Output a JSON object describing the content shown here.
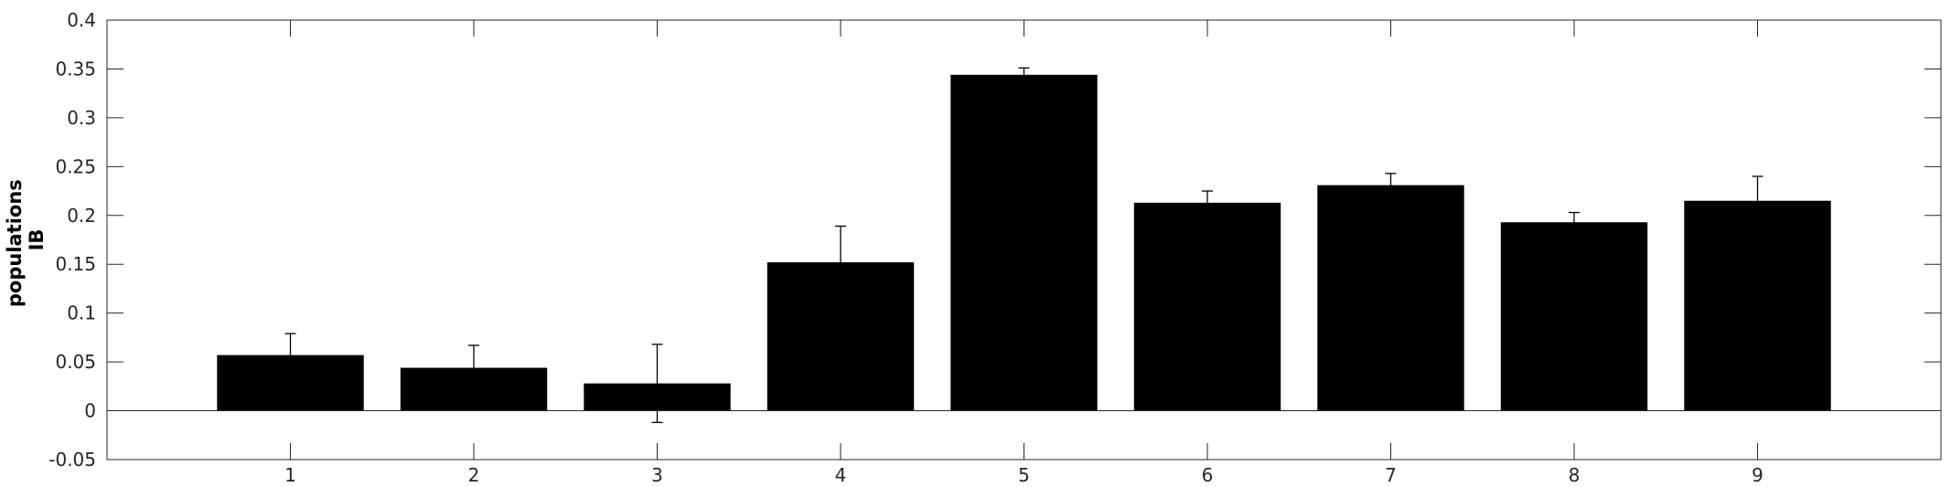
{
  "chart_data": {
    "type": "bar",
    "title": "",
    "xlabel": "",
    "ylabel_lines": [
      "populations",
      "IB"
    ],
    "categories": [
      "1",
      "2",
      "3",
      "4",
      "5",
      "6",
      "7",
      "8",
      "9"
    ],
    "values": [
      0.057,
      0.044,
      0.028,
      0.152,
      0.344,
      0.213,
      0.231,
      0.193,
      0.215
    ],
    "errors": [
      0.022,
      0.023,
      0.04,
      0.037,
      0.007,
      0.012,
      0.012,
      0.01,
      0.025
    ],
    "ylim": [
      -0.05,
      0.4
    ],
    "yticks": [
      -0.05,
      0,
      0.05,
      0.1,
      0.15,
      0.2,
      0.25,
      0.3,
      0.35,
      0.4
    ],
    "ytick_labels": [
      "-0.05",
      "0",
      "0.05",
      "0.1",
      "0.15",
      "0.2",
      "0.25",
      "0.3",
      "0.35",
      "0.4"
    ],
    "xlim": [
      0,
      10
    ],
    "grid": false,
    "colors": {
      "bar": "#000000",
      "axis": "#262626",
      "zero_line": "#262626",
      "background": "#ffffff"
    }
  }
}
